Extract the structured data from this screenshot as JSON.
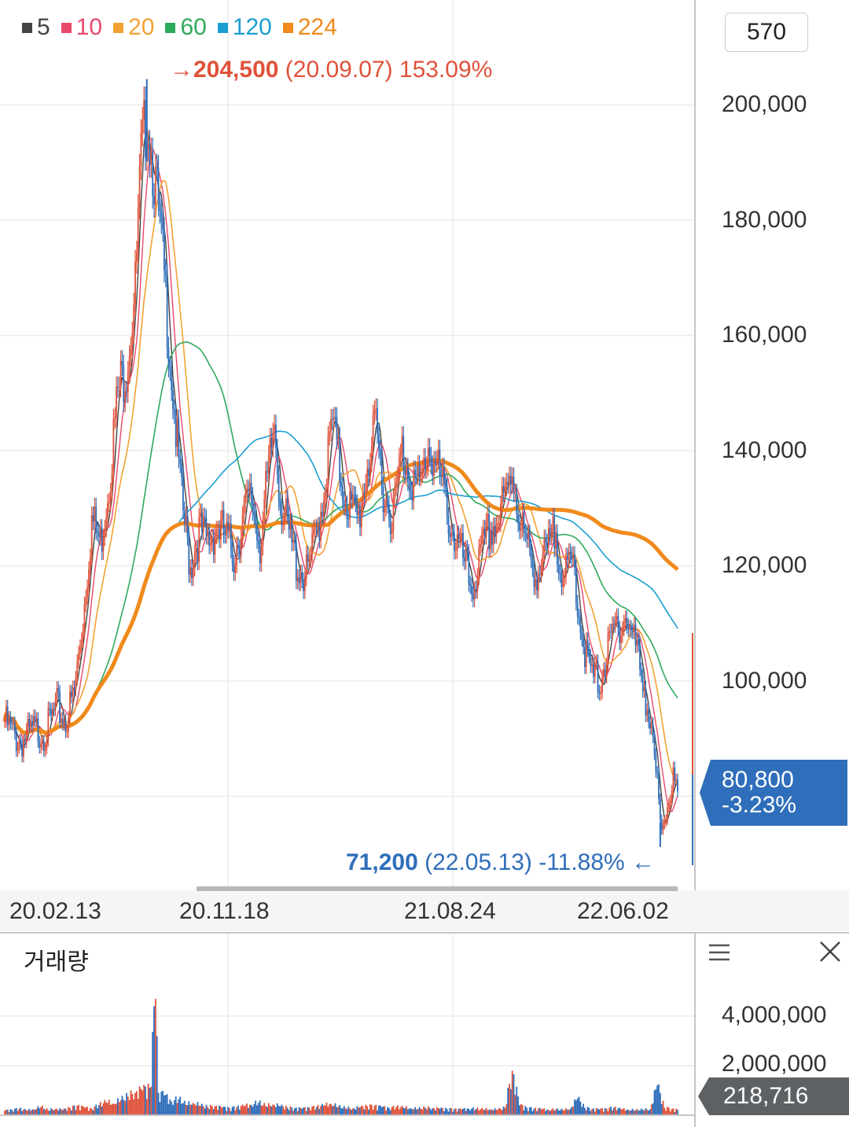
{
  "legend": [
    {
      "label": "5",
      "color": "#444444"
    },
    {
      "label": "10",
      "color": "#e8496b"
    },
    {
      "label": "20",
      "color": "#f2a233"
    },
    {
      "label": "60",
      "color": "#2eaa5c"
    },
    {
      "label": "120",
      "color": "#1a9ed0"
    },
    {
      "label": "224",
      "color": "#f08a1c"
    }
  ],
  "period_box": "570",
  "high_annotation": {
    "arrow": "→",
    "price": "204,500",
    "detail": "(20.09.07) 153.09%"
  },
  "low_annotation": {
    "price": "71,200",
    "detail": "(22.05.13) -11.88%",
    "arrow": "←"
  },
  "current_price": {
    "value": "80,800",
    "change": "-3.23%"
  },
  "volume_panel": {
    "title": "거래량",
    "current": "218,716",
    "ticks": [
      "4,000,000",
      "2,000,000"
    ]
  },
  "chart_data": {
    "type": "candlestick",
    "x_tick_labels": [
      "20.02.13",
      "20.11.18",
      "21.08.24",
      "22.06.02"
    ],
    "y_tick_labels": [
      "200,000",
      "180,000",
      "160,000",
      "140,000",
      "120,000",
      "100,000"
    ],
    "ylim": [
      68000,
      215000
    ],
    "volume_ylim": [
      0,
      5000000
    ],
    "close_path": [
      [
        0,
        93000
      ],
      [
        8,
        90000
      ],
      [
        12,
        89500
      ],
      [
        20,
        91500
      ],
      [
        28,
        91000
      ],
      [
        36,
        95500
      ],
      [
        42,
        93000
      ],
      [
        48,
        98000
      ],
      [
        54,
        111000
      ],
      [
        60,
        128000
      ],
      [
        66,
        124000
      ],
      [
        72,
        135000
      ],
      [
        78,
        150000
      ],
      [
        84,
        155000
      ],
      [
        90,
        168000
      ],
      [
        94,
        190000
      ],
      [
        98,
        199000
      ],
      [
        104,
        186000
      ],
      [
        110,
        170000
      ],
      [
        116,
        150000
      ],
      [
        122,
        131000
      ],
      [
        128,
        120000
      ],
      [
        134,
        126000
      ],
      [
        140,
        124000
      ],
      [
        146,
        127000
      ],
      [
        152,
        125000
      ],
      [
        158,
        122000
      ],
      [
        164,
        128000
      ],
      [
        170,
        132000
      ],
      [
        176,
        124000
      ],
      [
        182,
        136000
      ],
      [
        186,
        145000
      ],
      [
        190,
        132000
      ],
      [
        196,
        125000
      ],
      [
        202,
        120000
      ],
      [
        208,
        118000
      ],
      [
        214,
        124000
      ],
      [
        220,
        133000
      ],
      [
        226,
        145000
      ],
      [
        232,
        135000
      ],
      [
        238,
        130000
      ],
      [
        244,
        128000
      ],
      [
        250,
        138000
      ],
      [
        256,
        143000
      ],
      [
        262,
        132000
      ],
      [
        268,
        129000
      ],
      [
        274,
        140000
      ],
      [
        280,
        136000
      ],
      [
        286,
        133000
      ],
      [
        292,
        141000
      ],
      [
        298,
        137000
      ],
      [
        304,
        131000
      ],
      [
        310,
        125000
      ],
      [
        316,
        121000
      ],
      [
        322,
        116000
      ],
      [
        328,
        121000
      ],
      [
        334,
        126000
      ],
      [
        340,
        128000
      ],
      [
        346,
        132000
      ],
      [
        350,
        137000
      ],
      [
        356,
        127000
      ],
      [
        362,
        121000
      ],
      [
        368,
        119000
      ],
      [
        374,
        122000
      ],
      [
        380,
        126000
      ],
      [
        386,
        117000
      ],
      [
        392,
        121000
      ],
      [
        398,
        108000
      ],
      [
        404,
        101000
      ],
      [
        410,
        100000
      ],
      [
        416,
        105000
      ],
      [
        422,
        110000
      ],
      [
        428,
        111000
      ],
      [
        434,
        107000
      ],
      [
        440,
        101000
      ],
      [
        446,
        90000
      ],
      [
        450,
        82000
      ],
      [
        452,
        74000
      ],
      [
        456,
        78000
      ],
      [
        460,
        83000
      ],
      [
        462,
        81500
      ],
      [
        464,
        80800
      ]
    ],
    "volume_bars": [
      [
        0,
        180000
      ],
      [
        5,
        220000
      ],
      [
        10,
        260000
      ],
      [
        15,
        190000
      ],
      [
        20,
        240000
      ],
      [
        25,
        330000
      ],
      [
        30,
        200000
      ],
      [
        35,
        260000
      ],
      [
        40,
        210000
      ],
      [
        45,
        290000
      ],
      [
        50,
        380000
      ],
      [
        55,
        300000
      ],
      [
        60,
        260000
      ],
      [
        65,
        410000
      ],
      [
        70,
        520000
      ],
      [
        75,
        470000
      ],
      [
        80,
        600000
      ],
      [
        85,
        750000
      ],
      [
        90,
        900000
      ],
      [
        95,
        1000000
      ],
      [
        100,
        1100000
      ],
      [
        104,
        4700000
      ],
      [
        106,
        900000
      ],
      [
        110,
        800000
      ],
      [
        115,
        550000
      ],
      [
        120,
        650000
      ],
      [
        125,
        420000
      ],
      [
        130,
        500000
      ],
      [
        135,
        380000
      ],
      [
        140,
        330000
      ],
      [
        145,
        360000
      ],
      [
        150,
        300000
      ],
      [
        155,
        280000
      ],
      [
        160,
        320000
      ],
      [
        165,
        360000
      ],
      [
        170,
        420000
      ],
      [
        175,
        500000
      ],
      [
        180,
        370000
      ],
      [
        185,
        430000
      ],
      [
        190,
        360000
      ],
      [
        195,
        300000
      ],
      [
        200,
        280000
      ],
      [
        205,
        260000
      ],
      [
        210,
        300000
      ],
      [
        215,
        330000
      ],
      [
        220,
        380000
      ],
      [
        225,
        460000
      ],
      [
        230,
        340000
      ],
      [
        235,
        290000
      ],
      [
        240,
        270000
      ],
      [
        245,
        310000
      ],
      [
        250,
        360000
      ],
      [
        255,
        380000
      ],
      [
        260,
        320000
      ],
      [
        265,
        290000
      ],
      [
        270,
        330000
      ],
      [
        275,
        300000
      ],
      [
        280,
        280000
      ],
      [
        285,
        250000
      ],
      [
        290,
        300000
      ],
      [
        295,
        280000
      ],
      [
        300,
        260000
      ],
      [
        305,
        250000
      ],
      [
        310,
        240000
      ],
      [
        315,
        230000
      ],
      [
        320,
        260000
      ],
      [
        325,
        250000
      ],
      [
        330,
        230000
      ],
      [
        335,
        240000
      ],
      [
        340,
        220000
      ],
      [
        345,
        300000
      ],
      [
        350,
        1800000
      ],
      [
        355,
        400000
      ],
      [
        360,
        300000
      ],
      [
        365,
        260000
      ],
      [
        370,
        240000
      ],
      [
        375,
        220000
      ],
      [
        380,
        230000
      ],
      [
        385,
        210000
      ],
      [
        390,
        260000
      ],
      [
        395,
        680000
      ],
      [
        400,
        300000
      ],
      [
        405,
        250000
      ],
      [
        410,
        230000
      ],
      [
        415,
        260000
      ],
      [
        420,
        300000
      ],
      [
        425,
        240000
      ],
      [
        430,
        220000
      ],
      [
        435,
        200000
      ],
      [
        440,
        220000
      ],
      [
        445,
        240000
      ],
      [
        450,
        1200000
      ],
      [
        455,
        300000
      ],
      [
        460,
        250000
      ],
      [
        464,
        218716
      ]
    ],
    "current_price": 80800,
    "high": {
      "value": 204500,
      "date": "20.09.07",
      "pct": "153.09%"
    },
    "low": {
      "value": 71200,
      "date": "22.05.13",
      "pct": "-11.88%"
    }
  }
}
